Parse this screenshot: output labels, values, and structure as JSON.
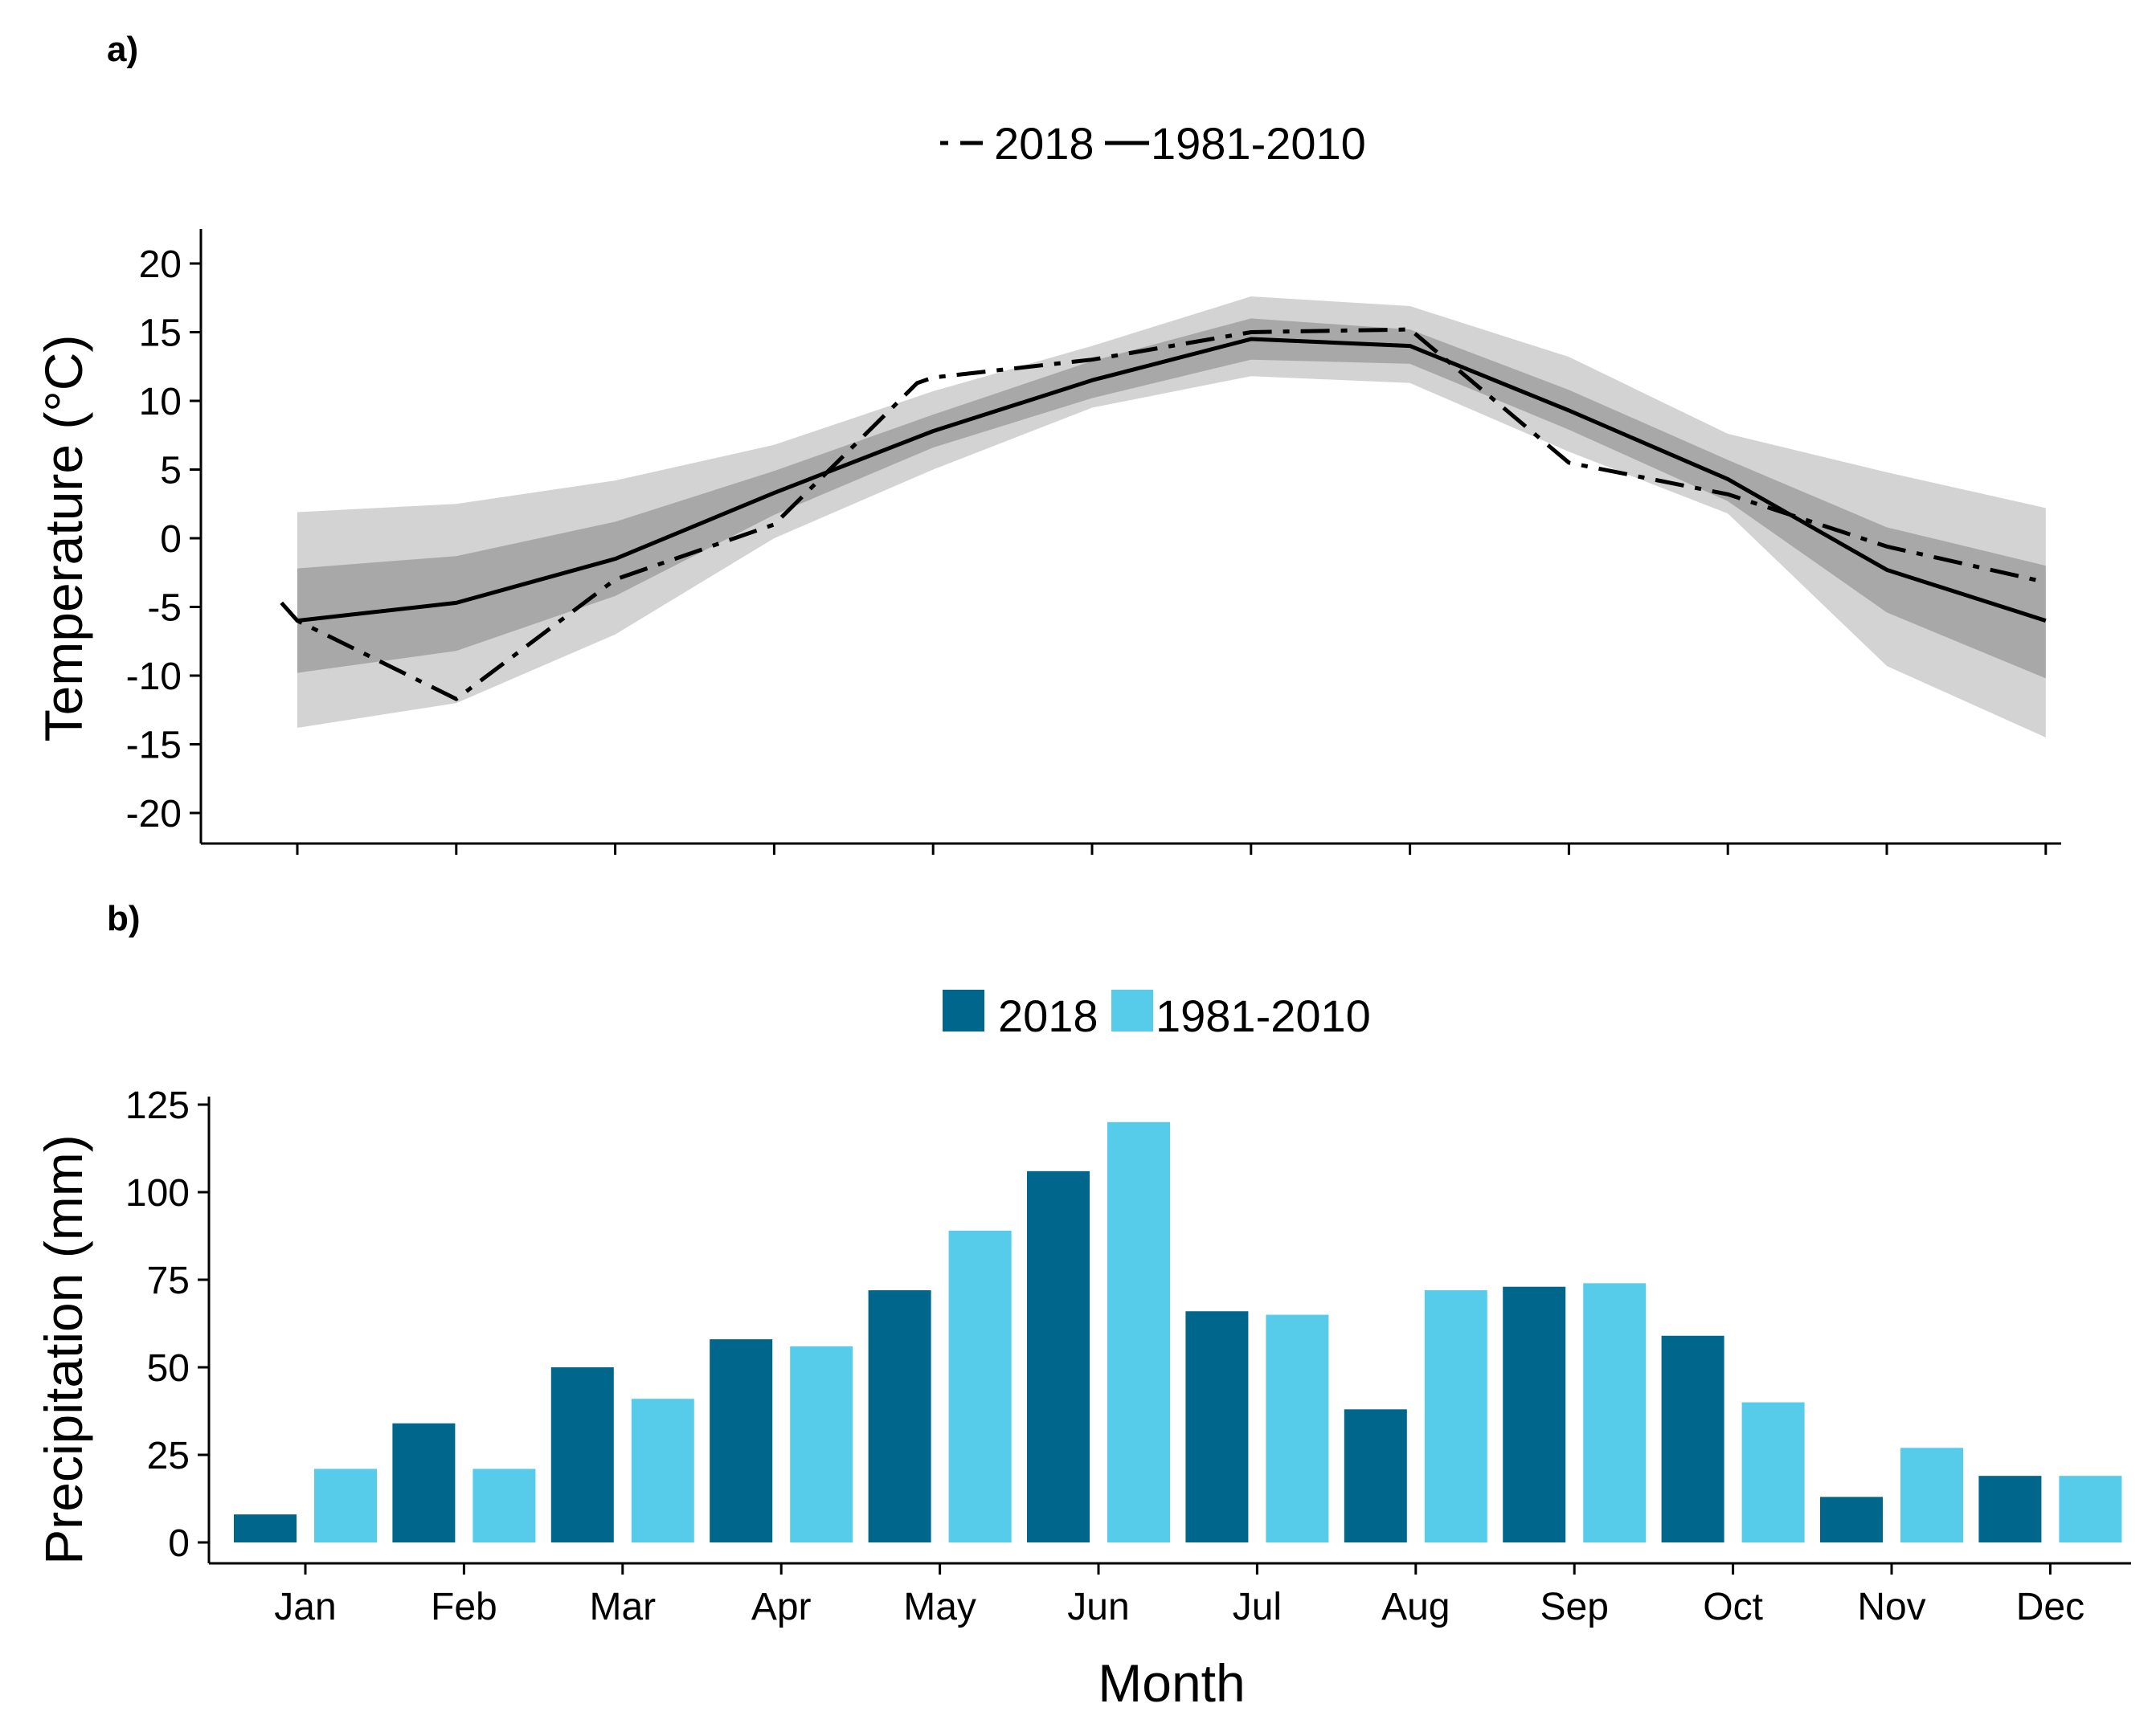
{
  "panels": {
    "a_label": "a)",
    "b_label": "b)"
  },
  "colors": {
    "bar_2018": "#00668C",
    "bar_normal": "#56CCEA",
    "band_outer": "#D3D3D3",
    "band_inner": "#A8A8A8",
    "line": "#000000"
  },
  "chart_data": [
    {
      "type": "line",
      "panel": "a)",
      "ylabel": "Temperature (°C)",
      "xlabel": "",
      "categories": [
        "Jan",
        "Feb",
        "Mar",
        "Apr",
        "May",
        "Jun",
        "Jul",
        "Aug",
        "Sep",
        "Oct",
        "Nov",
        "Dec"
      ],
      "ylim": [
        -22,
        22
      ],
      "yticks": [
        20,
        15,
        10,
        5,
        0,
        -5,
        -10,
        -15,
        -20
      ],
      "legend": {
        "position": "top",
        "entries": [
          "2018",
          "1981-2010"
        ]
      },
      "series": [
        {
          "name": "2018",
          "style": "dash-dot",
          "x": [
            0.9,
            1,
            2,
            3,
            4,
            4.9,
            5,
            6,
            7,
            8,
            9,
            10,
            11,
            12
          ],
          "values": [
            -4.7,
            -6.0,
            -11.7,
            -3.0,
            1.0,
            11.3,
            11.7,
            13.0,
            15.0,
            15.2,
            5.5,
            3.2,
            -0.6,
            -3.2
          ]
        },
        {
          "name": "1981-2010",
          "style": "solid",
          "x": [
            1,
            2,
            3,
            4,
            5,
            6,
            7,
            8,
            9,
            10,
            11,
            12
          ],
          "values": [
            -6.0,
            -4.7,
            -1.5,
            3.3,
            7.8,
            11.5,
            14.5,
            14.0,
            9.3,
            4.3,
            -2.3,
            -6.0
          ]
        }
      ],
      "bands": [
        {
          "level": "outer",
          "x": [
            1,
            2,
            3,
            4,
            5,
            6,
            7,
            8,
            9,
            10,
            11,
            12
          ],
          "upper": [
            1.9,
            2.5,
            4.2,
            6.8,
            10.7,
            14.0,
            17.6,
            16.9,
            13.2,
            7.6,
            4.8,
            2.2
          ],
          "lower": [
            -13.8,
            -12.0,
            -7.0,
            0.0,
            5.0,
            9.5,
            11.8,
            11.3,
            6.3,
            1.8,
            -9.3,
            -14.5
          ]
        },
        {
          "level": "inner",
          "x": [
            1,
            2,
            3,
            4,
            5,
            6,
            7,
            8,
            9,
            10,
            11,
            12
          ],
          "upper": [
            -2.2,
            -1.3,
            1.2,
            4.9,
            9.0,
            12.9,
            16.0,
            15.2,
            10.8,
            5.7,
            0.8,
            -2.0
          ],
          "lower": [
            -9.8,
            -8.2,
            -4.2,
            1.7,
            6.6,
            10.2,
            13.0,
            12.7,
            7.9,
            2.7,
            -5.4,
            -10.2
          ]
        }
      ]
    },
    {
      "type": "bar",
      "panel": "b)",
      "ylabel": "Precipitation (mm)",
      "xlabel": "Month",
      "categories": [
        "Jan",
        "Feb",
        "Mar",
        "Apr",
        "May",
        "Jun",
        "Jul",
        "Aug",
        "Sep",
        "Oct",
        "Nov",
        "Dec"
      ],
      "ylim": [
        -6,
        130
      ],
      "yticks": [
        125,
        100,
        75,
        50,
        25,
        0
      ],
      "legend": {
        "position": "top",
        "entries": [
          "2018",
          "1981-2010"
        ]
      },
      "series": [
        {
          "name": "2018",
          "values": [
            8,
            34,
            50,
            58,
            72,
            106,
            66,
            38,
            73,
            59,
            13,
            19
          ]
        },
        {
          "name": "1981-2010",
          "values": [
            21,
            21,
            41,
            56,
            89,
            120,
            65,
            72,
            74,
            40,
            27,
            19
          ]
        }
      ]
    }
  ]
}
